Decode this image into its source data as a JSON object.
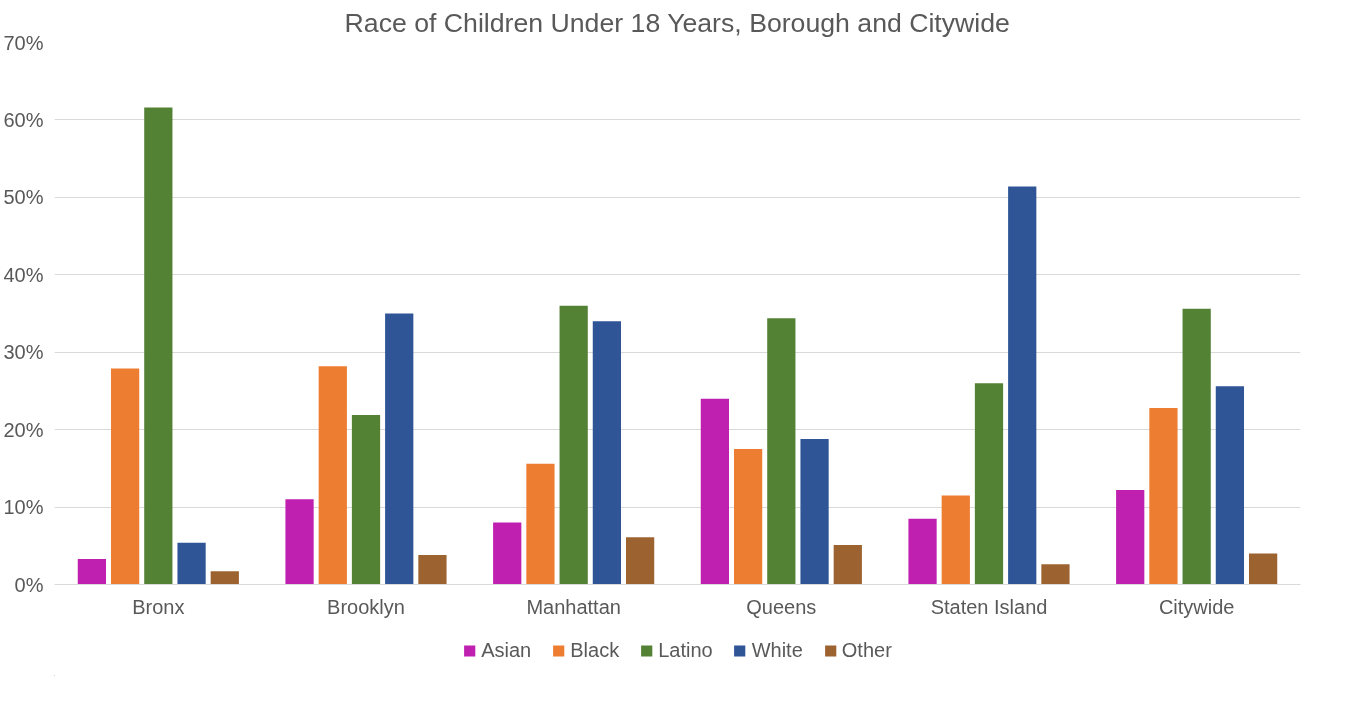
{
  "chart_data": {
    "type": "bar",
    "title": "Race of Children Under 18 Years, Borough and Citywide",
    "categories": [
      "Bronx",
      "Brooklyn",
      "Manhattan",
      "Queens",
      "Staten Island",
      "Citywide"
    ],
    "series": [
      {
        "name": "Asian",
        "color": "#c020b0",
        "values": [
          3.3,
          11.0,
          8.0,
          24.0,
          8.5,
          12.2
        ]
      },
      {
        "name": "Black",
        "color": "#ed7d31",
        "values": [
          27.9,
          28.2,
          15.6,
          17.5,
          11.5,
          22.8
        ]
      },
      {
        "name": "Latino",
        "color": "#548235",
        "values": [
          61.6,
          21.9,
          36.0,
          34.4,
          26.0,
          35.6
        ]
      },
      {
        "name": "White",
        "color": "#2f5597",
        "values": [
          5.4,
          35.0,
          34.0,
          18.8,
          51.4,
          25.6
        ]
      },
      {
        "name": "Other",
        "color": "#9c6330",
        "values": [
          1.7,
          3.8,
          6.1,
          5.1,
          2.6,
          4.0
        ]
      }
    ],
    "ylim": [
      0,
      70
    ],
    "yticks": [
      {
        "value": 0,
        "label": "0%"
      },
      {
        "value": 10,
        "label": "10%"
      },
      {
        "value": 20,
        "label": "20%"
      },
      {
        "value": 30,
        "label": "30%"
      },
      {
        "value": 40,
        "label": "40%"
      },
      {
        "value": 50,
        "label": "50%"
      },
      {
        "value": 60,
        "label": "60%"
      },
      {
        "value": 70,
        "label": "70%"
      }
    ],
    "grid": "y",
    "legend": "bottom"
  }
}
